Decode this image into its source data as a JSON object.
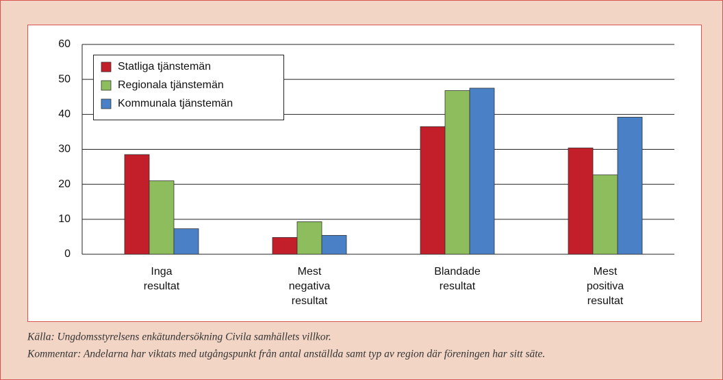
{
  "chart_data": {
    "type": "bar",
    "categories": [
      [
        "Inga",
        "resultat"
      ],
      [
        "Mest",
        "negativa",
        "resultat"
      ],
      [
        "Blandade",
        "resultat"
      ],
      [
        "Mest",
        "positiva",
        "resultat"
      ]
    ],
    "series": [
      {
        "name": "Statliga tjänstemän",
        "color": "#c21f2b",
        "values": [
          28.5,
          4.8,
          36.5,
          30.4
        ]
      },
      {
        "name": "Regionala tjänstemän",
        "color": "#8dbd5d",
        "values": [
          21,
          9.3,
          46.8,
          22.7
        ]
      },
      {
        "name": "Kommunala tjänstemän",
        "color": "#4a80c5",
        "values": [
          7.3,
          5.4,
          47.5,
          39.2
        ]
      }
    ],
    "ylim": [
      0,
      60
    ],
    "yticks": [
      0,
      10,
      20,
      30,
      40,
      50,
      60
    ],
    "grid": true,
    "legend": "top-left",
    "annotations": [
      "Källa: Ungdomsstyrelsens enkätundersökning Civila samhällets villkor.",
      "Kommentar: Andelarna har viktats med utgångspunkt från antal anställda samt typ av region där föreningen har sitt säte."
    ]
  }
}
